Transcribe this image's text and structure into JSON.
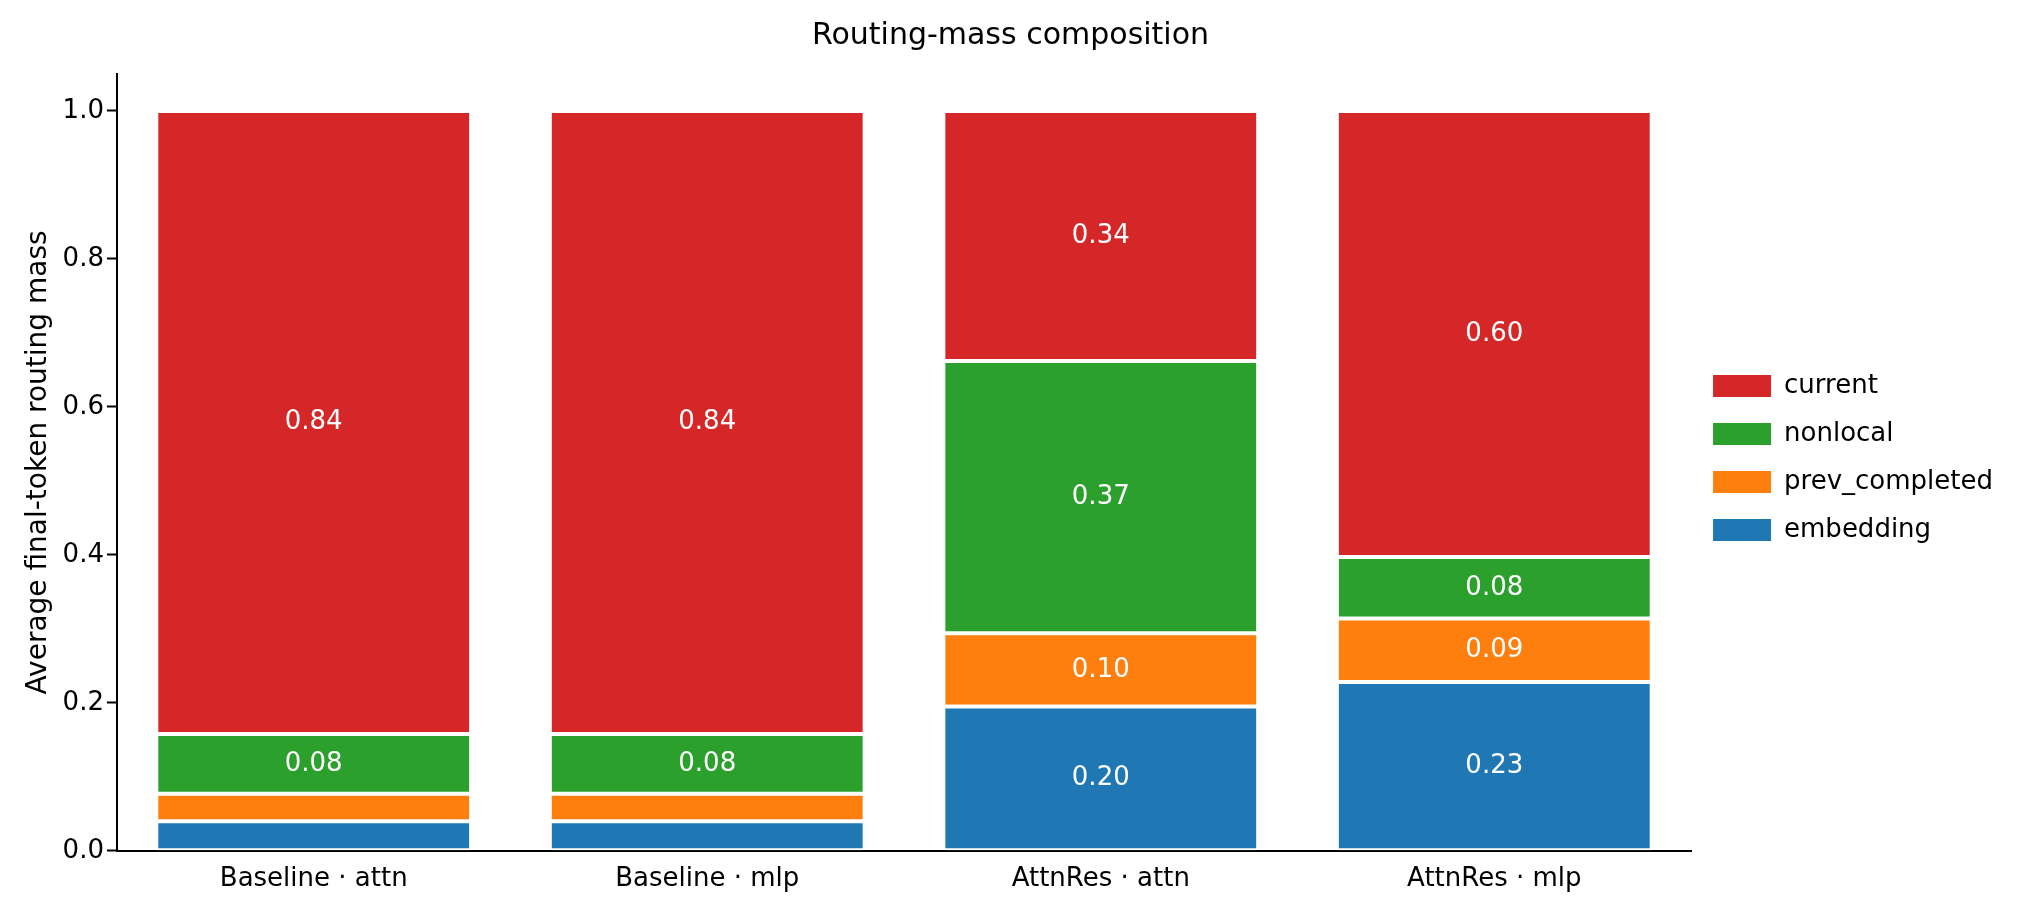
{
  "chart_data": {
    "type": "bar",
    "title": "Routing-mass composition",
    "ylabel": "Average final-token routing mass",
    "categories": [
      "Baseline · attn",
      "Baseline · mlp",
      "AttnRes · attn",
      "AttnRes · mlp"
    ],
    "stacked": true,
    "ylim": [
      0,
      1.05
    ],
    "yticks": [
      {
        "value": 0,
        "label": "0.0"
      },
      {
        "value": 0.2,
        "label": "0.2"
      },
      {
        "value": 0.4,
        "label": "0.4"
      },
      {
        "value": 0.6,
        "label": "0.6"
      },
      {
        "value": 0.8,
        "label": "0.8"
      },
      {
        "value": 1,
        "label": "1.0"
      }
    ],
    "grid": false,
    "legend": "right",
    "series": [
      {
        "name": "embedding",
        "color": "#1f77b4",
        "values": [
          0.04,
          0.04,
          0.195,
          0.228
        ],
        "value_labels": [
          null,
          null,
          "0.20",
          "0.23"
        ]
      },
      {
        "name": "prev_completed",
        "color": "#ff7f0e",
        "values": [
          0.037,
          0.037,
          0.099,
          0.086
        ],
        "value_labels": [
          null,
          null,
          "0.10",
          "0.09"
        ]
      },
      {
        "name": "nonlocal",
        "color": "#2ca02c",
        "values": [
          0.081,
          0.081,
          0.368,
          0.083
        ],
        "value_labels": [
          "0.08",
          "0.08",
          "0.37",
          "0.08"
        ]
      },
      {
        "name": "current",
        "color": "#d62728",
        "values": [
          0.842,
          0.842,
          0.338,
          0.603
        ],
        "value_labels": [
          "0.84",
          "0.84",
          "0.34",
          "0.60"
        ]
      }
    ]
  }
}
